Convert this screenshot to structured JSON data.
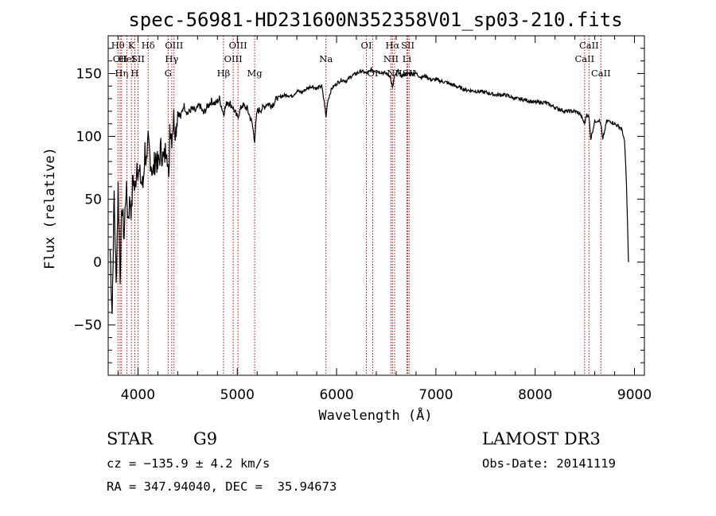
{
  "chart_data": {
    "type": "line",
    "title": "spec-56981-HD231600N352358V01_sp03-210.fits",
    "xlabel": "Wavelength (Å)",
    "ylabel": "Flux (relative)",
    "xlim": [
      3700,
      9100
    ],
    "ylim": [
      -90,
      180
    ],
    "xticks": [
      4000,
      5000,
      6000,
      7000,
      8000,
      9000
    ],
    "yticks": [
      -50,
      0,
      50,
      100,
      150
    ],
    "yticks_text": [
      "−50",
      "0",
      "50",
      "100",
      "150"
    ],
    "grid": false,
    "series": [
      {
        "name": "spectrum",
        "x": [
          3720,
          3740,
          3760,
          3780,
          3800,
          3820,
          3840,
          3860,
          3880,
          3900,
          3920,
          3935,
          3950,
          3968,
          3990,
          4010,
          4030,
          4050,
          4070,
          4090,
          4102,
          4120,
          4150,
          4180,
          4200,
          4230,
          4260,
          4290,
          4310,
          4320,
          4340,
          4360,
          4380,
          4400,
          4430,
          4460,
          4500,
          4540,
          4580,
          4620,
          4660,
          4700,
          4740,
          4780,
          4820,
          4861,
          4900,
          4950,
          5000,
          5050,
          5100,
          5150,
          5175,
          5185,
          5200,
          5250,
          5300,
          5350,
          5400,
          5450,
          5500,
          5550,
          5600,
          5650,
          5700,
          5750,
          5800,
          5850,
          5880,
          5893,
          5910,
          5950,
          6000,
          6050,
          6100,
          6150,
          6200,
          6250,
          6300,
          6350,
          6400,
          6450,
          6500,
          6540,
          6563,
          6580,
          6620,
          6650,
          6700,
          6750,
          6800,
          6850,
          6900,
          6950,
          7000,
          7100,
          7200,
          7300,
          7400,
          7500,
          7600,
          7700,
          7800,
          7900,
          8000,
          8100,
          8200,
          8300,
          8400,
          8450,
          8498,
          8520,
          8542,
          8560,
          8600,
          8640,
          8662,
          8680,
          8720,
          8760,
          8800,
          8840,
          8870,
          8890,
          8900,
          8910,
          8920,
          8930,
          8940
        ],
        "y": [
          10,
          -40,
          55,
          -20,
          60,
          -10,
          45,
          20,
          60,
          35,
          50,
          40,
          70,
          55,
          80,
          70,
          65,
          60,
          90,
          75,
          95,
          85,
          70,
          85,
          75,
          90,
          80,
          95,
          60,
          110,
          100,
          115,
          105,
          120,
          115,
          125,
          118,
          122,
          120,
          125,
          118,
          124,
          128,
          126,
          130,
          118,
          128,
          124,
          115,
          125,
          122,
          110,
          97,
          108,
          120,
          122,
          126,
          125,
          130,
          132,
          133,
          132,
          136,
          135,
          138,
          140,
          138,
          140,
          125,
          115,
          128,
          138,
          142,
          145,
          144,
          148,
          150,
          152,
          150,
          153,
          152,
          151,
          150,
          148,
          138,
          147,
          152,
          148,
          150,
          150,
          150,
          147,
          148,
          145,
          145,
          143,
          140,
          137,
          136,
          135,
          133,
          133,
          130,
          129,
          127,
          127,
          123,
          120,
          120,
          118,
          110,
          118,
          115,
          98,
          112,
          113,
          110,
          97,
          112,
          112,
          110,
          108,
          106,
          100,
          95,
          80,
          60,
          30,
          0
        ]
      }
    ],
    "line_markers": [
      {
        "wavelength": 3798,
        "labels": [
          {
            "text": "Hθ",
            "row": 1
          }
        ]
      },
      {
        "wavelength": 3820,
        "labels": [
          {
            "text": "OII",
            "row": 2
          }
        ]
      },
      {
        "wavelength": 3835,
        "labels": [
          {
            "text": "Hη",
            "row": 3
          }
        ]
      },
      {
        "wavelength": 3889,
        "labels": [
          {
            "text": "HeI",
            "row": 2
          }
        ]
      },
      {
        "wavelength": 3934,
        "labels": [
          {
            "text": "K",
            "row": 1
          }
        ]
      },
      {
        "wavelength": 3968,
        "labels": [
          {
            "text": "H",
            "row": 3
          }
        ]
      },
      {
        "wavelength": 4000,
        "labels": [
          {
            "text": "SII",
            "row": 2
          }
        ]
      },
      {
        "wavelength": 4102,
        "labels": [
          {
            "text": "Hδ",
            "row": 1
          }
        ]
      },
      {
        "wavelength": 4304,
        "labels": [
          {
            "text": "G",
            "row": 3
          }
        ]
      },
      {
        "wavelength": 4340,
        "labels": [
          {
            "text": "Hγ",
            "row": 2
          }
        ]
      },
      {
        "wavelength": 4363,
        "labels": [
          {
            "text": "OIII",
            "row": 1
          }
        ]
      },
      {
        "wavelength": 4861,
        "labels": [
          {
            "text": "Hβ",
            "row": 3
          }
        ]
      },
      {
        "wavelength": 4959,
        "labels": [
          {
            "text": "OIII",
            "row": 2
          }
        ]
      },
      {
        "wavelength": 5007,
        "labels": [
          {
            "text": "OIII",
            "row": 1
          }
        ]
      },
      {
        "wavelength": 5175,
        "labels": [
          {
            "text": "Mg",
            "row": 3
          }
        ]
      },
      {
        "wavelength": 5893,
        "labels": [
          {
            "text": "Na",
            "row": 2
          }
        ]
      },
      {
        "wavelength": 6300,
        "labels": [
          {
            "text": "OI",
            "row": 1
          }
        ]
      },
      {
        "wavelength": 6364,
        "labels": [
          {
            "text": "OI",
            "row": 3
          }
        ]
      },
      {
        "wavelength": 6548,
        "labels": [
          {
            "text": "NII",
            "row": 2
          }
        ]
      },
      {
        "wavelength": 6563,
        "labels": [
          {
            "text": "Hα",
            "row": 1
          }
        ]
      },
      {
        "wavelength": 6584,
        "labels": [
          {
            "text": "NII",
            "row": 3
          }
        ]
      },
      {
        "wavelength": 6708,
        "labels": [
          {
            "text": "Li",
            "row": 2
          }
        ]
      },
      {
        "wavelength": 6717,
        "labels": [
          {
            "text": "SII",
            "row": 1
          }
        ]
      },
      {
        "wavelength": 6731,
        "labels": [
          {
            "text": "SII",
            "row": 3
          }
        ]
      },
      {
        "wavelength": 8498,
        "labels": [
          {
            "text": "CaII",
            "row": 2
          }
        ]
      },
      {
        "wavelength": 8542,
        "labels": [
          {
            "text": "CaII",
            "row": 1
          }
        ]
      },
      {
        "wavelength": 8662,
        "labels": [
          {
            "text": "CaII",
            "row": 3
          }
        ]
      }
    ]
  },
  "info": {
    "object_type": "STAR",
    "subclass": "G9",
    "survey": "LAMOST DR3",
    "cz_line": "cz = −135.9 ± 4.2 km/s",
    "obs_date": "Obs-Date: 20141119",
    "coords": "RA = 347.94040, DEC =  35.94673"
  },
  "colors": {
    "spectrum": "#000000",
    "line_marker": "#cc0000",
    "axes": "#000000"
  }
}
